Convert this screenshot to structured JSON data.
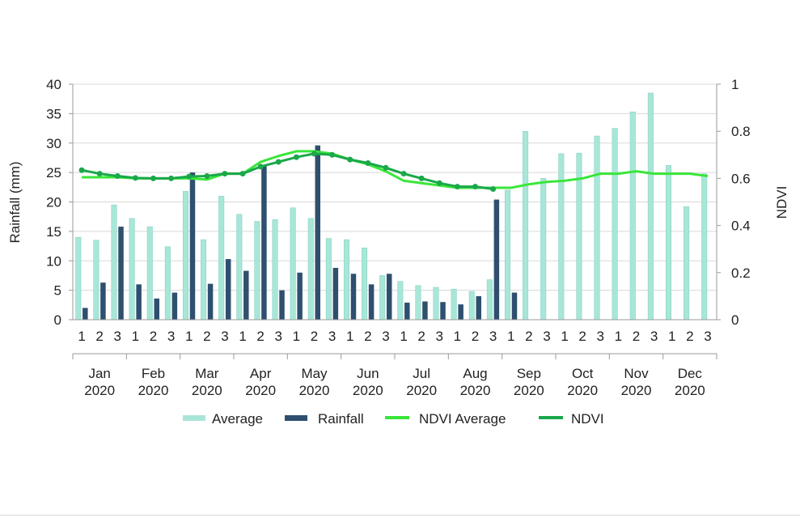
{
  "chart_data": {
    "type": "bar",
    "y_left_label": "Rainfall (mm)",
    "y_right_label": "NDVI",
    "y_left_ticks": [
      "0",
      "5",
      "10",
      "15",
      "20",
      "25",
      "30",
      "35",
      "40"
    ],
    "y_right_ticks": [
      "0",
      "0.2",
      "0.4",
      "0.6",
      "0.8",
      "1"
    ],
    "ylim_left": [
      0,
      40
    ],
    "ylim_right": [
      0,
      1
    ],
    "dekad_labels": [
      "1",
      "2",
      "3"
    ],
    "months": [
      {
        "month": "Jan",
        "year": "2020"
      },
      {
        "month": "Feb",
        "year": "2020"
      },
      {
        "month": "Mar",
        "year": "2020"
      },
      {
        "month": "Apr",
        "year": "2020"
      },
      {
        "month": "May",
        "year": "2020"
      },
      {
        "month": "Jun",
        "year": "2020"
      },
      {
        "month": "Jul",
        "year": "2020"
      },
      {
        "month": "Aug",
        "year": "2020"
      },
      {
        "month": "Sep",
        "year": "2020"
      },
      {
        "month": "Oct",
        "year": "2020"
      },
      {
        "month": "Nov",
        "year": "2020"
      },
      {
        "month": "Dec",
        "year": "2020"
      }
    ],
    "grid": "horizontal",
    "legend_position": "bottom",
    "series": [
      {
        "name": "Average",
        "kind": "bar",
        "axis": "left",
        "color": "#a8e6d8",
        "values": [
          14,
          13.5,
          19.5,
          17.2,
          15.8,
          12.4,
          21.8,
          13.6,
          21,
          17.9,
          16.7,
          17,
          19,
          17.2,
          13.8,
          13.6,
          12.2,
          7.5,
          6.5,
          5.8,
          5.5,
          5.2,
          4.8,
          6.8,
          22,
          32,
          24,
          28.2,
          28.3,
          31.2,
          32.5,
          35.3,
          38.5,
          26.2,
          19.2,
          24.8
        ]
      },
      {
        "name": "Rainfall",
        "kind": "bar",
        "axis": "left",
        "color": "#2f4f6f",
        "values": [
          2,
          6.3,
          15.8,
          6,
          3.6,
          4.6,
          25,
          6.1,
          10.3,
          8.3,
          26.3,
          5,
          8,
          29.6,
          8.8,
          7.8,
          6,
          7.8,
          2.9,
          3.1,
          3,
          2.6,
          4,
          20.4,
          4.6,
          null,
          null,
          null,
          null,
          null,
          null,
          null,
          null,
          null,
          null,
          null
        ]
      },
      {
        "name": "NDVI Average",
        "kind": "line",
        "axis": "right",
        "color": "#39e639",
        "values": [
          0.605,
          0.605,
          0.605,
          0.6,
          0.6,
          0.6,
          0.6,
          0.595,
          0.62,
          0.62,
          0.67,
          0.695,
          0.715,
          0.715,
          0.705,
          0.68,
          0.66,
          0.63,
          0.59,
          0.58,
          0.57,
          0.56,
          0.56,
          0.56,
          0.56,
          0.575,
          0.585,
          0.59,
          0.6,
          0.62,
          0.62,
          0.63,
          0.62,
          0.62,
          0.62,
          0.61
        ]
      },
      {
        "name": "NDVI",
        "kind": "line",
        "axis": "right",
        "color": "#1aa84a",
        "values": [
          0.635,
          0.62,
          0.61,
          0.602,
          0.6,
          0.6,
          0.608,
          0.61,
          0.62,
          0.62,
          0.65,
          0.67,
          0.69,
          0.705,
          0.7,
          0.68,
          0.665,
          0.645,
          0.62,
          0.6,
          0.58,
          0.565,
          0.565,
          0.555,
          null,
          null,
          null,
          null,
          null,
          null,
          null,
          null,
          null,
          null,
          null,
          null
        ]
      }
    ]
  }
}
